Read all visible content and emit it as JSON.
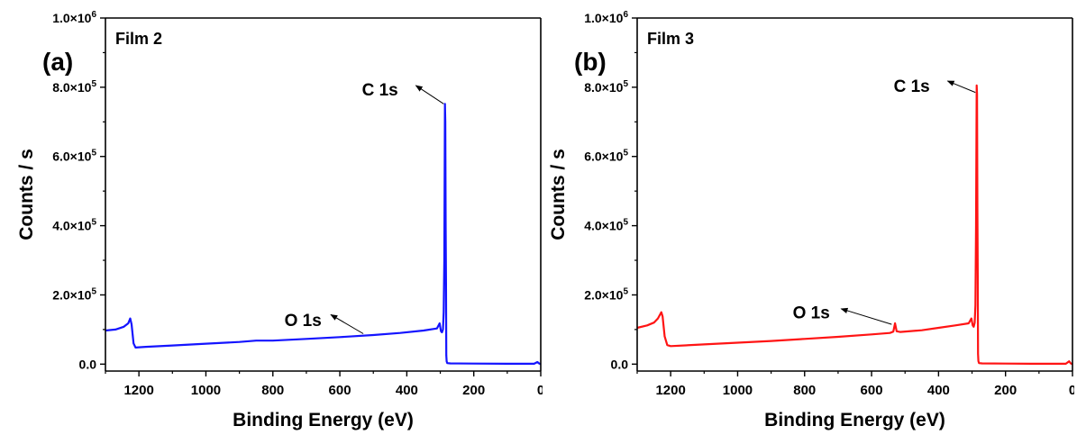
{
  "chart_data": [
    {
      "type": "line",
      "panel_label": "(a)",
      "title": "Film 2",
      "xlabel": "Binding Energy (eV)",
      "ylabel": "Counts / s",
      "xlim": [
        1300,
        0
      ],
      "ylim": [
        -20000,
        1000000
      ],
      "x_ticks": [
        1200,
        1000,
        800,
        600,
        400,
        200,
        0
      ],
      "x_tick_labels": [
        "1200",
        "1000",
        "800",
        "600",
        "400",
        "200",
        "0"
      ],
      "y_ticks": [
        0,
        200000,
        400000,
        600000,
        800000,
        1000000
      ],
      "y_tick_labels": [
        {
          "base": "0.0",
          "exp": ""
        },
        {
          "base": "2.0×10",
          "exp": "5"
        },
        {
          "base": "4.0×10",
          "exp": "5"
        },
        {
          "base": "6.0×10",
          "exp": "5"
        },
        {
          "base": "8.0×10",
          "exp": "5"
        },
        {
          "base": "1.0×10",
          "exp": "6"
        }
      ],
      "grid": false,
      "series": [
        {
          "color": "#1414ff",
          "x": [
            1300,
            1270,
            1245,
            1232,
            1226,
            1222,
            1216,
            1210,
            1180,
            1100,
            1000,
            900,
            850,
            800,
            700,
            600,
            500,
            420,
            350,
            310,
            302,
            298,
            295,
            292,
            290,
            288,
            286,
            285,
            284,
            283,
            282,
            281,
            279,
            270,
            200,
            100,
            20,
            10,
            5,
            0
          ],
          "y": [
            97000,
            100000,
            108000,
            118000,
            132000,
            115000,
            60000,
            48000,
            50000,
            54000,
            59000,
            64000,
            68000,
            68000,
            73000,
            78000,
            84000,
            90000,
            97000,
            103000,
            118000,
            95000,
            92000,
            100000,
            150000,
            300000,
            752000,
            700000,
            400000,
            230000,
            25000,
            8000,
            3000,
            2000,
            1500,
            1200,
            1000,
            6000,
            2000,
            0
          ]
        }
      ],
      "annotations": [
        {
          "text": "C 1s",
          "x": 480,
          "y": 795000,
          "tip": [
            373,
            805000
          ],
          "tail": [
            290,
            752000
          ]
        },
        {
          "text": "O 1s",
          "x": 710,
          "y": 128000,
          "tip": [
            627,
            143000
          ],
          "tail": [
            530,
            88000
          ]
        }
      ]
    },
    {
      "type": "line",
      "panel_label": "(b)",
      "title": "Film 3",
      "xlabel": "Binding Energy (eV)",
      "ylabel": "Counts / s",
      "xlim": [
        1300,
        0
      ],
      "ylim": [
        -20000,
        1000000
      ],
      "x_ticks": [
        1200,
        1000,
        800,
        600,
        400,
        200,
        0
      ],
      "x_tick_labels": [
        "1200",
        "1000",
        "800",
        "600",
        "400",
        "200",
        "0"
      ],
      "y_ticks": [
        0,
        200000,
        400000,
        600000,
        800000,
        1000000
      ],
      "y_tick_labels": [
        {
          "base": "0.0",
          "exp": ""
        },
        {
          "base": "2.0×10",
          "exp": "5"
        },
        {
          "base": "4.0×10",
          "exp": "5"
        },
        {
          "base": "6.0×10",
          "exp": "5"
        },
        {
          "base": "8.0×10",
          "exp": "5"
        },
        {
          "base": "1.0×10",
          "exp": "6"
        }
      ],
      "grid": false,
      "series": [
        {
          "color": "#ff1414",
          "x": [
            1300,
            1270,
            1250,
            1238,
            1228,
            1224,
            1218,
            1210,
            1200,
            1100,
            1000,
            900,
            800,
            700,
            600,
            545,
            535,
            530,
            525,
            515,
            450,
            400,
            350,
            310,
            302,
            298,
            295,
            292,
            290,
            288,
            286,
            285,
            284,
            283,
            282,
            281,
            279,
            270,
            200,
            100,
            20,
            10,
            5,
            0
          ],
          "y": [
            105000,
            112000,
            120000,
            132000,
            150000,
            138000,
            80000,
            55000,
            52000,
            57000,
            62000,
            67000,
            73000,
            79000,
            86000,
            90000,
            94000,
            118000,
            95000,
            93000,
            98000,
            105000,
            112000,
            118000,
            132000,
            112000,
            108000,
            120000,
            170000,
            400000,
            805000,
            780000,
            450000,
            250000,
            30000,
            9000,
            3000,
            2000,
            1500,
            1200,
            1000,
            8000,
            2000,
            0
          ]
        }
      ],
      "annotations": [
        {
          "text": "C 1s",
          "x": 480,
          "y": 805000,
          "tip": [
            373,
            818000
          ],
          "tail": [
            290,
            785000
          ]
        },
        {
          "text": "O 1s",
          "x": 780,
          "y": 150000,
          "tip": [
            691,
            160000
          ],
          "tail": [
            540,
            115000
          ]
        }
      ]
    }
  ]
}
